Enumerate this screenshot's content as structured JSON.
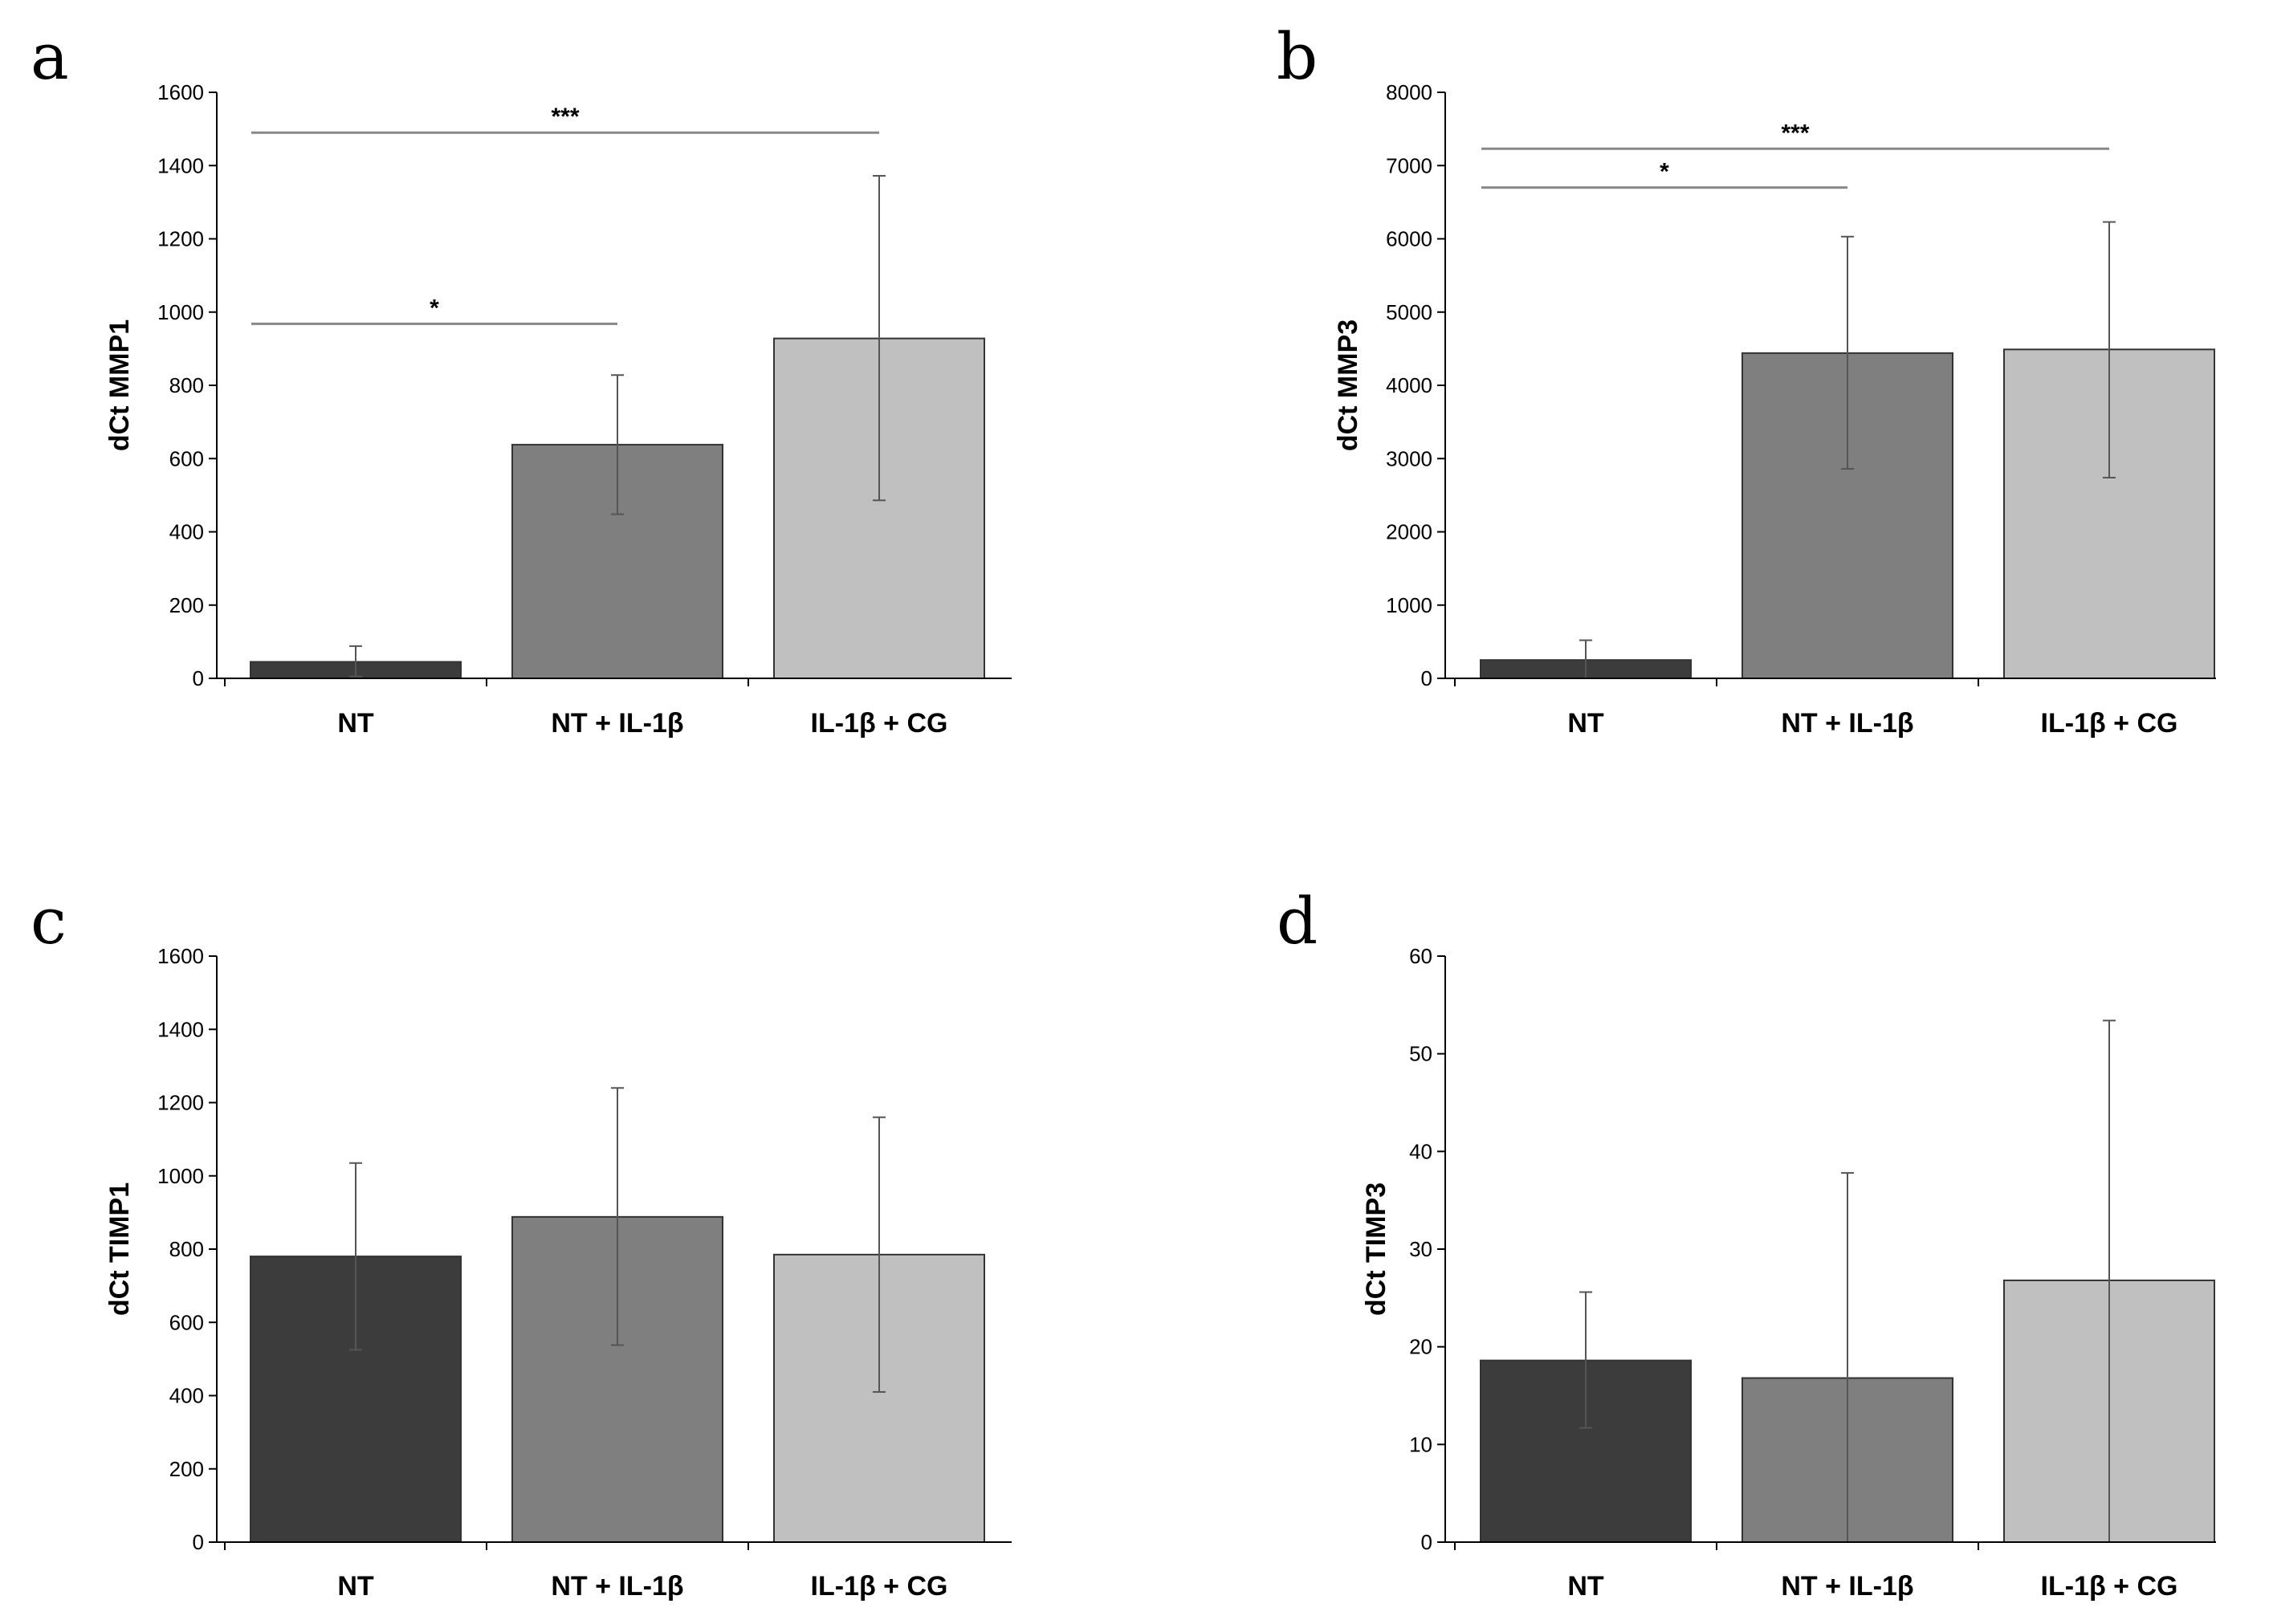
{
  "colors": {
    "series": [
      "#3c3c3c",
      "#7f7f7f",
      "#c0c0c0"
    ],
    "axis": "#000000",
    "errorbar": "#555555",
    "sigline": "#888888"
  },
  "chart_data": [
    {
      "panel": "a",
      "type": "bar",
      "categories": [
        "NT",
        "NT + IL-1β",
        "IL-1β + CG"
      ],
      "values": [
        45,
        638,
        928
      ],
      "errors_upper": [
        88,
        828,
        1372
      ],
      "errors_lower": [
        5,
        448,
        486
      ],
      "ylabel": "dCt MMP1",
      "ylim": [
        0,
        1600
      ],
      "yticks": [
        0,
        200,
        400,
        600,
        800,
        1000,
        1200,
        1400,
        1600
      ],
      "significance": [
        {
          "from": 0,
          "to": 2,
          "y": 1490,
          "label": "***"
        },
        {
          "from": 0,
          "to": 1,
          "y": 968,
          "label": "*"
        }
      ]
    },
    {
      "panel": "b",
      "type": "bar",
      "categories": [
        "NT",
        "NT + IL-1β",
        "IL-1β + CG"
      ],
      "values": [
        250,
        4440,
        4490
      ],
      "errors_upper": [
        520,
        6030,
        6230
      ],
      "errors_lower": [
        0,
        2860,
        2740
      ],
      "ylabel": "dCt MMP3",
      "ylim": [
        0,
        8000
      ],
      "yticks": [
        0,
        1000,
        2000,
        3000,
        4000,
        5000,
        6000,
        7000,
        8000
      ],
      "significance": [
        {
          "from": 0,
          "to": 2,
          "y": 7230,
          "label": "***"
        },
        {
          "from": 0,
          "to": 1,
          "y": 6700,
          "label": "*"
        }
      ]
    },
    {
      "panel": "c",
      "type": "bar",
      "categories": [
        "NT",
        "NT + IL-1β",
        "IL-1β + CG"
      ],
      "values": [
        780,
        888,
        785
      ],
      "errors_upper": [
        1035,
        1240,
        1160
      ],
      "errors_lower": [
        525,
        538,
        410
      ],
      "ylabel": "dCt TIMP1",
      "ylim": [
        0,
        1600
      ],
      "yticks": [
        0,
        200,
        400,
        600,
        800,
        1000,
        1200,
        1400,
        1600
      ],
      "significance": []
    },
    {
      "panel": "d",
      "type": "bar",
      "categories": [
        "NT",
        "NT + IL-1β",
        "IL-1β + CG"
      ],
      "values": [
        18.6,
        16.8,
        26.8
      ],
      "errors_upper": [
        25.6,
        37.8,
        53.4
      ],
      "errors_lower": [
        11.7,
        0,
        0
      ],
      "ylabel": "dCt TIMP3",
      "ylim": [
        0,
        60
      ],
      "yticks": [
        0,
        10,
        20,
        30,
        40,
        50,
        60
      ],
      "significance": []
    }
  ]
}
